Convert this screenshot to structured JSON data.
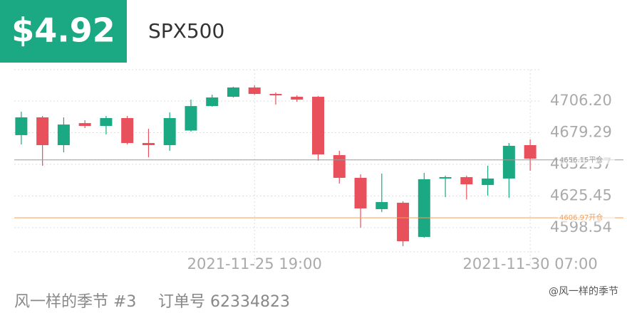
{
  "header": {
    "pnl": "$4.92",
    "symbol": "SPX500"
  },
  "chart_data": {
    "type": "candlestick",
    "categories": [
      null,
      null,
      null,
      null,
      null,
      null,
      null,
      null,
      null,
      null,
      null,
      "2021-11-25 19:00",
      null,
      null,
      null,
      null,
      null,
      null,
      null,
      null,
      null,
      null,
      null,
      null,
      "2021-11-30 07:00"
    ],
    "open": [
      4677.2,
      4692.3,
      4668.7,
      4687.4,
      4685.0,
      4691.7,
      4670.5,
      4668.7,
      4681.1,
      4701.9,
      4709.8,
      4717.7,
      4712.2,
      4709.8,
      4709.8,
      4660.2,
      4640.9,
      4614.3,
      4619.7,
      4590.6,
      4640.3,
      4641.5,
      4634.8,
      4640.3,
      4668.7
    ],
    "high": [
      4697.1,
      4693.5,
      4692.3,
      4689.9,
      4693.5,
      4693.5,
      4682.6,
      4696.5,
      4707.4,
      4711.6,
      4718.3,
      4719.5,
      4713.5,
      4711.0,
      4710.4,
      4663.9,
      4643.9,
      4644.5,
      4620.9,
      4645.1,
      4642.7,
      4642.7,
      4651.2,
      4670.5,
      4673.5
    ],
    "low": [
      4669.3,
      4651.2,
      4662.6,
      4683.2,
      4677.8,
      4669.3,
      4658.4,
      4663.9,
      4680.2,
      4701.4,
      4709.2,
      4711.6,
      4703.2,
      4705.6,
      4655.4,
      4636.0,
      4598.5,
      4611.8,
      4582.8,
      4590.0,
      4624.5,
      4622.5,
      4625.8,
      4623.9,
      4646.9
    ],
    "close": [
      4692.3,
      4668.7,
      4686.2,
      4685.0,
      4691.7,
      4670.5,
      4668.7,
      4691.7,
      4701.9,
      4709.2,
      4717.7,
      4712.2,
      4711.0,
      4707.4,
      4660.8,
      4640.9,
      4614.9,
      4620.3,
      4587.0,
      4639.7,
      4641.5,
      4635.4,
      4640.3,
      4668.1,
      4657.2
    ],
    "up_color": "#1aa982",
    "down_color": "#e8505b",
    "ylim": [
      4578.0,
      4732.8
    ],
    "yticks": [
      {
        "value": 4706.2,
        "label": "4706.20"
      },
      4679.29,
      4652.37,
      4625.45,
      4598.54
    ],
    "grid": true,
    "reference_lines": [
      {
        "value": 4656.15,
        "label": "4656.15平仓",
        "color": "#9a9a9a"
      },
      {
        "value": 4606.97,
        "label": "4606.97开仓",
        "color": "#f0a060"
      }
    ]
  },
  "footer": {
    "user": "风一样的季节 #3",
    "order": "订单号 62334823",
    "watermark": "@风一样的季节"
  }
}
